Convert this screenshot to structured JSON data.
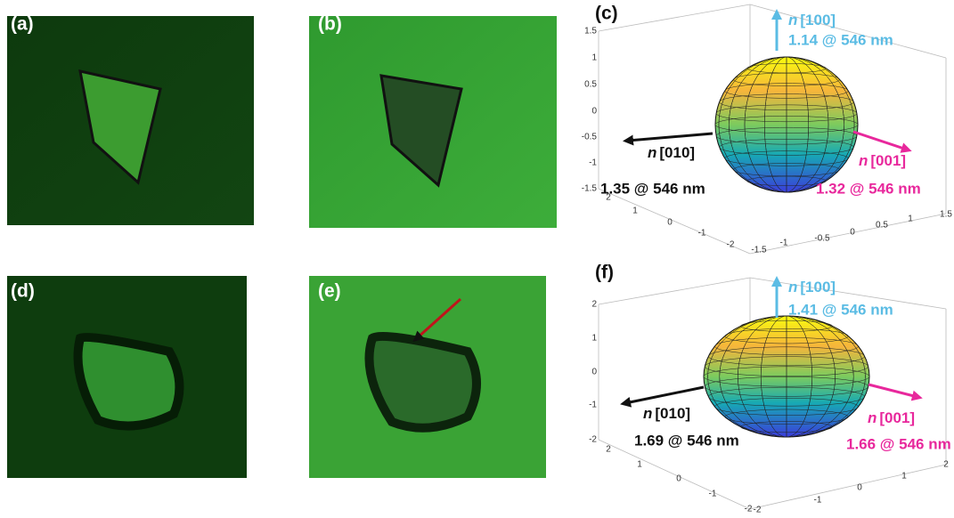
{
  "panels": [
    {
      "label": "(a)"
    },
    {
      "label": "(b)"
    },
    {
      "label": "(c)",
      "z_ticks": [
        1.5,
        1,
        0.5,
        0,
        -0.5,
        -1,
        -1.5
      ],
      "y_ticks": [
        2,
        1,
        0,
        -1,
        -2
      ],
      "x_ticks": [
        -1.5,
        -1,
        -0.5,
        0,
        0.5,
        1,
        1.5
      ],
      "axes": [
        {
          "symbol": "n",
          "index": "[100]",
          "value": "1.14 @ 546 nm"
        },
        {
          "symbol": "n",
          "index": "[010]",
          "value": "1.35 @ 546 nm"
        },
        {
          "symbol": "n",
          "index": "[001]",
          "value": "1.32 @ 546 nm"
        }
      ]
    },
    {
      "label": "(d)"
    },
    {
      "label": "(e)"
    },
    {
      "label": "(f)",
      "z_ticks": [
        2,
        1,
        0,
        -1,
        -2
      ],
      "y_ticks": [
        2,
        1,
        0,
        -1,
        -2
      ],
      "x_ticks": [
        -2,
        -1,
        0,
        1,
        2
      ],
      "axes": [
        {
          "symbol": "n",
          "index": "[100]",
          "value": "1.41 @ 546 nm"
        },
        {
          "symbol": "n",
          "index": "[010]",
          "value": "1.69 @ 546 nm"
        },
        {
          "symbol": "n",
          "index": "[001]",
          "value": "1.66 @ 546 nm"
        }
      ]
    }
  ]
}
